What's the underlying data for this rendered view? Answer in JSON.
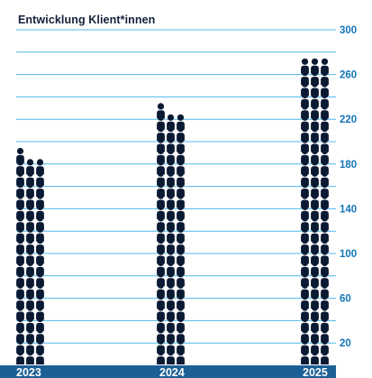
{
  "chart_data": {
    "type": "bar",
    "title": "Entwicklung Klient*innen",
    "xlabel": "",
    "ylabel": "",
    "categories": [
      "2023",
      "2024",
      "2025"
    ],
    "values": [
      197,
      237,
      277
    ],
    "ylim": [
      0,
      300
    ],
    "yticks": [
      "20",
      "60",
      "100",
      "140",
      "180",
      "220",
      "260",
      "300"
    ],
    "grid": true,
    "icon": "person-icon",
    "people_per_icon_row": 3,
    "colors": {
      "icon": "#0a1a33",
      "grid": "#4fb8e6",
      "tick_text": "#1476b8",
      "axis_band": "#1a5f96",
      "title": "#14203a"
    }
  }
}
